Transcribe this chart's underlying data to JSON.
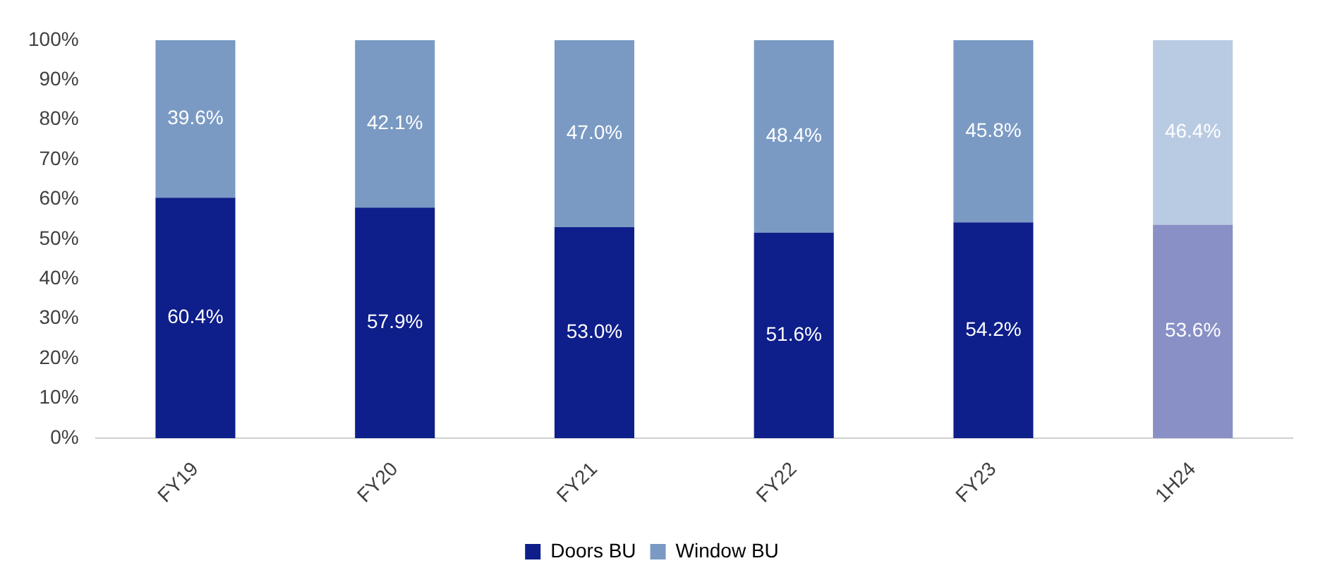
{
  "chart_data": {
    "type": "bar",
    "stacked": true,
    "categories": [
      "FY19",
      "FY20",
      "FY21",
      "FY22",
      "FY23",
      "1H24"
    ],
    "ylim": [
      0,
      100
    ],
    "yticks": [
      {
        "value": 0,
        "label": "0%"
      },
      {
        "value": 10,
        "label": "10%"
      },
      {
        "value": 20,
        "label": "20%"
      },
      {
        "value": 30,
        "label": "30%"
      },
      {
        "value": 40,
        "label": "40%"
      },
      {
        "value": 50,
        "label": "50%"
      },
      {
        "value": 60,
        "label": "60%"
      },
      {
        "value": 70,
        "label": "70%"
      },
      {
        "value": 80,
        "label": "80%"
      },
      {
        "value": 90,
        "label": "90%"
      },
      {
        "value": 100,
        "label": "100%"
      }
    ],
    "grid": false,
    "legend": "bottom",
    "series": [
      {
        "name": "Doors BU",
        "color": "#0e1e8a",
        "colors": [
          "#0e1e8a",
          "#0e1e8a",
          "#0e1e8a",
          "#0e1e8a",
          "#0e1e8a",
          "#8890c6"
        ],
        "values": [
          60.4,
          57.9,
          53.0,
          51.6,
          54.2,
          53.6
        ],
        "value_labels": [
          "60.4%",
          "57.9%",
          "53.0%",
          "51.6%",
          "54.2%",
          "53.6%"
        ]
      },
      {
        "name": "Window BU",
        "color": "#7a9ac4",
        "colors": [
          "#7a9ac4",
          "#7a9ac4",
          "#7a9ac4",
          "#7a9ac4",
          "#7a9ac4",
          "#b9cbe2"
        ],
        "values": [
          39.6,
          42.1,
          47.0,
          48.4,
          45.8,
          46.4
        ],
        "value_labels": [
          "39.6%",
          "42.1%",
          "47.0%",
          "48.4%",
          "45.8%",
          "46.4%"
        ]
      }
    ]
  }
}
